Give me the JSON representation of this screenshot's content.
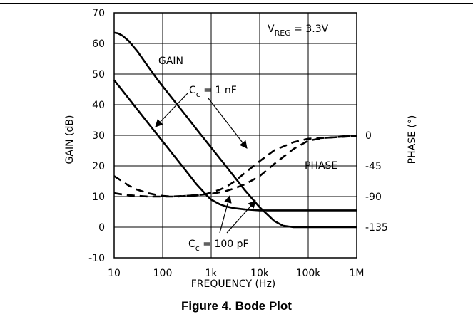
{
  "caption": "Figure 4. Bode Plot",
  "chart_data": {
    "type": "line",
    "xscale": "log",
    "xlim": [
      10,
      1000000
    ],
    "ylim": [
      -10,
      70
    ],
    "y2lim": [
      -135,
      0
    ],
    "xlabel": "FREQUENCY (Hz)",
    "ylabel": "GAIN (dB)",
    "y2label": "PHASE (°)",
    "x_ticks": [
      {
        "value": 10,
        "label": "10"
      },
      {
        "value": 100,
        "label": "100"
      },
      {
        "value": 1000,
        "label": "1k"
      },
      {
        "value": 10000,
        "label": "10k"
      },
      {
        "value": 100000,
        "label": "100k"
      },
      {
        "value": 1000000,
        "label": "1M"
      }
    ],
    "y_ticks": [
      "70",
      "60",
      "50",
      "40",
      "30",
      "20",
      "10",
      "0",
      "-10"
    ],
    "y2_ticks": [
      {
        "value": 0,
        "label": "0"
      },
      {
        "value": -45,
        "label": "-45"
      },
      {
        "value": -90,
        "label": "-90"
      },
      {
        "value": -135,
        "label": "-135"
      }
    ],
    "grid": true,
    "series": [
      {
        "kind": "gain",
        "style": "solid",
        "x": [
          10,
          12,
          15,
          20,
          30,
          50,
          80,
          100,
          150,
          200,
          300,
          500,
          1000,
          2000,
          5000,
          10000,
          20000,
          30000,
          50000,
          100000,
          1000000
        ],
        "y": [
          63.5,
          63.3,
          62.5,
          60.8,
          57.5,
          52.5,
          48,
          46,
          42.5,
          40,
          36.5,
          32,
          26,
          20,
          12,
          6.5,
          2,
          0.5,
          0,
          0,
          0
        ]
      },
      {
        "kind": "gain",
        "style": "solid",
        "x": [
          10,
          20,
          50,
          100,
          200,
          500,
          800,
          1000,
          1500,
          2000,
          3000,
          5000,
          10000,
          100000,
          1000000
        ],
        "y": [
          48,
          42,
          34,
          28,
          22,
          14,
          10.5,
          9,
          7.5,
          6.8,
          6.2,
          5.8,
          5.5,
          5.5,
          5.5
        ]
      },
      {
        "kind": "phase",
        "style": "dashed",
        "x": [
          10,
          15,
          20,
          30,
          50,
          80,
          100,
          150,
          200,
          300,
          500,
          800,
          1000,
          1500,
          2000,
          3000,
          5000,
          10000,
          20000,
          50000,
          100000,
          1000000
        ],
        "y": [
          -85,
          -87,
          -88,
          -89,
          -90,
          -90,
          -90,
          -90,
          -90,
          -89,
          -88,
          -86,
          -84,
          -80,
          -76,
          -68,
          -55,
          -38,
          -22,
          -10,
          -5,
          -1
        ]
      },
      {
        "kind": "phase",
        "style": "dashed",
        "x": [
          10,
          15,
          20,
          30,
          50,
          80,
          100,
          150,
          200,
          300,
          500,
          1000,
          2000,
          3000,
          5000,
          10000,
          20000,
          50000,
          100000,
          200000,
          500000,
          1000000
        ],
        "y": [
          -60,
          -68,
          -74,
          -80,
          -85,
          -88,
          -89,
          -90,
          -89.5,
          -89,
          -88,
          -86,
          -82,
          -78,
          -72,
          -60,
          -42,
          -20,
          -8,
          -4,
          -2,
          -1
        ]
      }
    ],
    "annotations": [
      {
        "text": "GAIN"
      },
      {
        "text": "PHASE"
      },
      {
        "prefix": "C",
        "sub": "c",
        "text": " = 1 nF"
      },
      {
        "prefix": "C",
        "sub": "c",
        "text": " = 100 pF"
      },
      {
        "prefix": "V",
        "sub": "REG",
        "text": " = 3.3V"
      }
    ]
  }
}
